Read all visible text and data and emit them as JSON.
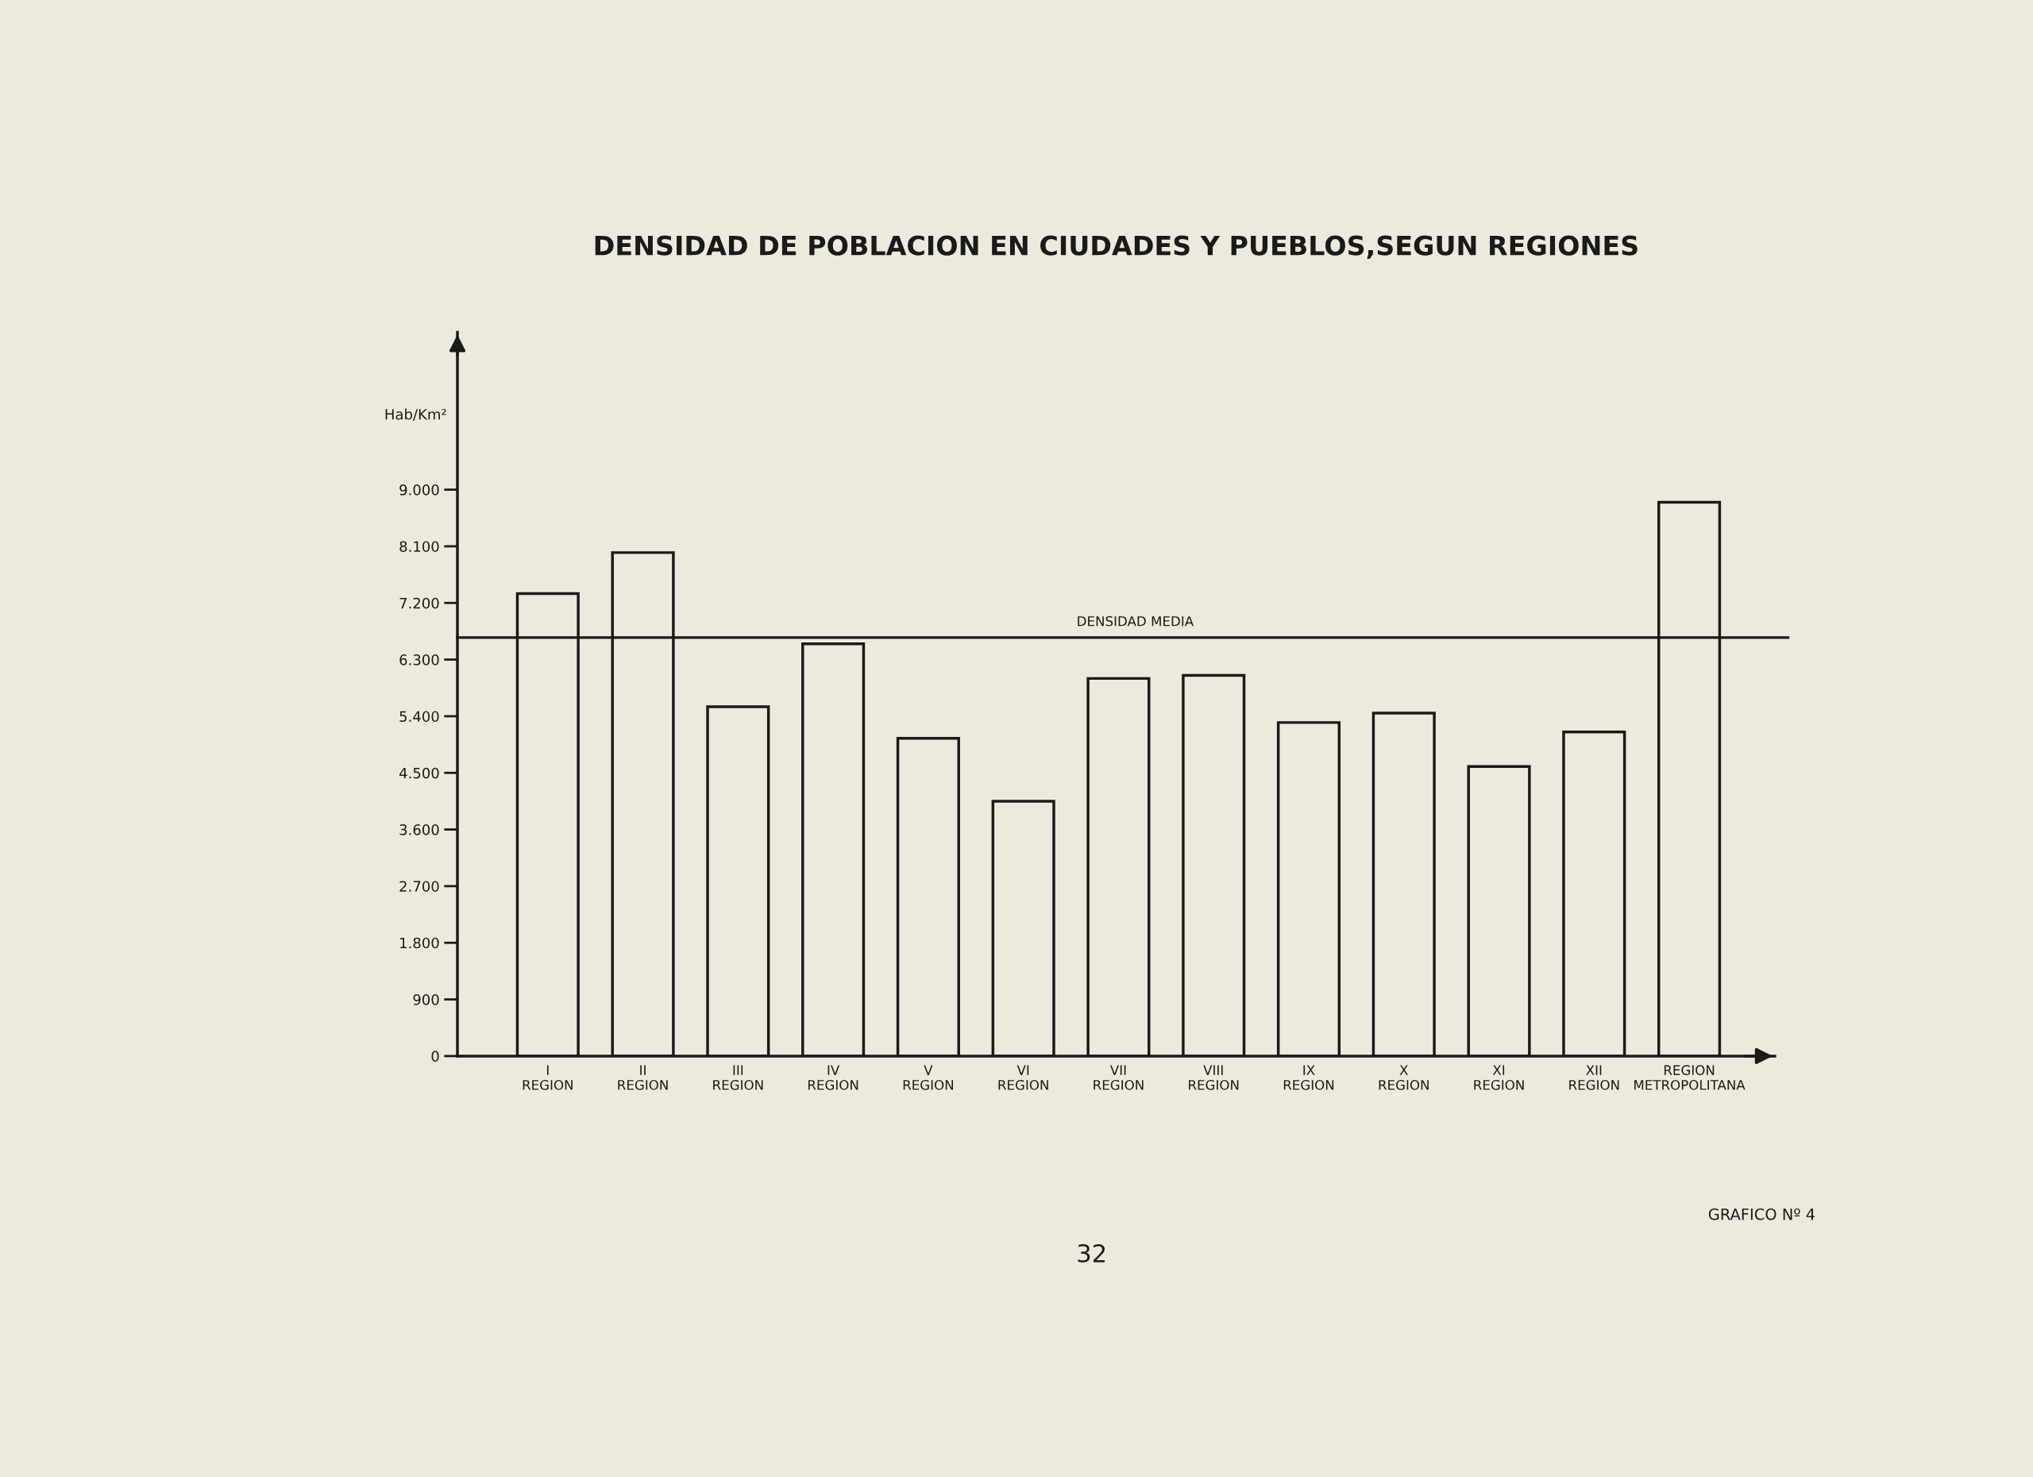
{
  "chart_data": {
    "type": "bar",
    "title": "DENSIDAD DE POBLACION EN CIUDADES Y PUEBLOS,SEGUN REGIONES",
    "ylabel": "Hab/Km²",
    "categories": [
      "I\nREGION",
      "II\nREGION",
      "III\nREGION",
      "IV\nREGION",
      "V\nREGION",
      "VI\nREGION",
      "VII\nREGION",
      "VIII\nREGION",
      "IX\nREGION",
      "X\nREGION",
      "XI\nREGION",
      "XII\nREGION",
      "REGION\nMETROPOLITANA"
    ],
    "values": [
      7350,
      8000,
      5550,
      6550,
      5050,
      4050,
      6000,
      6050,
      5300,
      5450,
      4600,
      5150,
      8800
    ],
    "color": "#1a1a1a",
    "ylim": [
      0,
      11500
    ],
    "yticks": [
      0,
      900,
      {
        "value": 1800,
        "label": "1.800"
      },
      {
        "value": 2700,
        "label": "2.700"
      },
      {
        "value": 3600,
        "label": "3.600"
      },
      {
        "value": 4500,
        "label": "4.500"
      },
      {
        "value": 5400,
        "label": "5.400"
      },
      {
        "value": 6300,
        "label": "6.300"
      },
      {
        "value": 7200,
        "label": "7.200"
      },
      {
        "value": 8100,
        "label": "8.100"
      },
      {
        "value": 9000,
        "label": "9.000"
      }
    ],
    "ref_lines": [
      {
        "axis": "y",
        "value": 6650,
        "label": "DENSIDAD MEDIA",
        "color": "#1a1a1a"
      }
    ],
    "annotations": [
      "GRAFICO Nº 4",
      "32"
    ]
  }
}
